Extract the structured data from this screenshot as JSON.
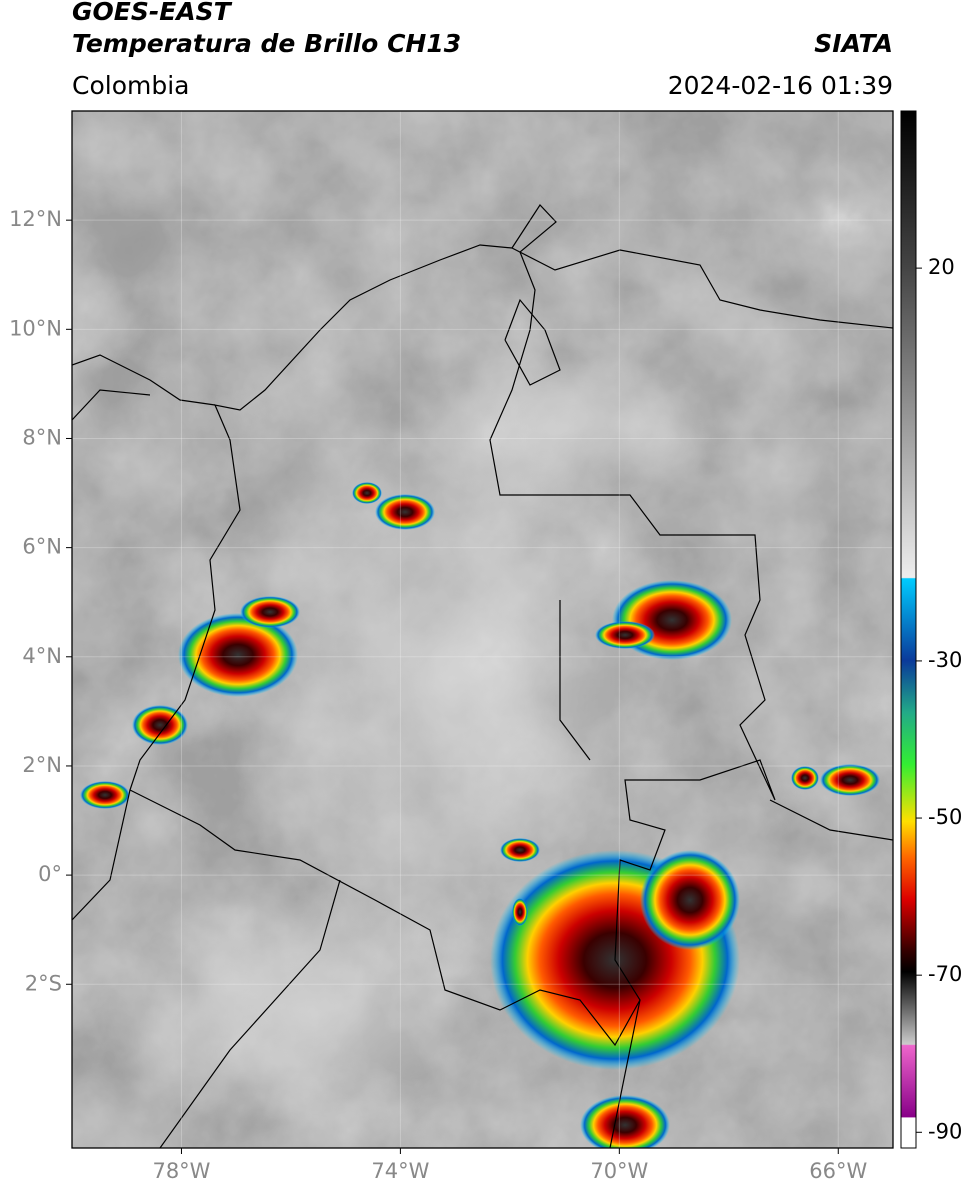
{
  "header": {
    "satellite": "GOES-EAST",
    "product": "Temperatura de Brillo CH13",
    "source": "SIATA",
    "region": "Colombia",
    "timestamp": "2024-02-16 01:39"
  },
  "map": {
    "xlim": [
      -80,
      -65
    ],
    "ylim": [
      -5,
      14
    ],
    "xticks": [
      {
        "value": -78,
        "label": "78°W"
      },
      {
        "value": -74,
        "label": "74°W"
      },
      {
        "value": -70,
        "label": "70°W"
      },
      {
        "value": -66,
        "label": "66°W"
      }
    ],
    "yticks": [
      {
        "value": 12,
        "label": "12°N"
      },
      {
        "value": 10,
        "label": "10°N"
      },
      {
        "value": 8,
        "label": "8°N"
      },
      {
        "value": 6,
        "label": "6°N"
      },
      {
        "value": 4,
        "label": "4°N"
      },
      {
        "value": 2,
        "label": "2°N"
      },
      {
        "value": 0,
        "label": "0°"
      },
      {
        "value": -2,
        "label": "2°S"
      }
    ]
  },
  "colorbar": {
    "lim": [
      -92,
      40
    ],
    "ticks": [
      20,
      -30,
      -50,
      -70,
      -90
    ]
  }
}
